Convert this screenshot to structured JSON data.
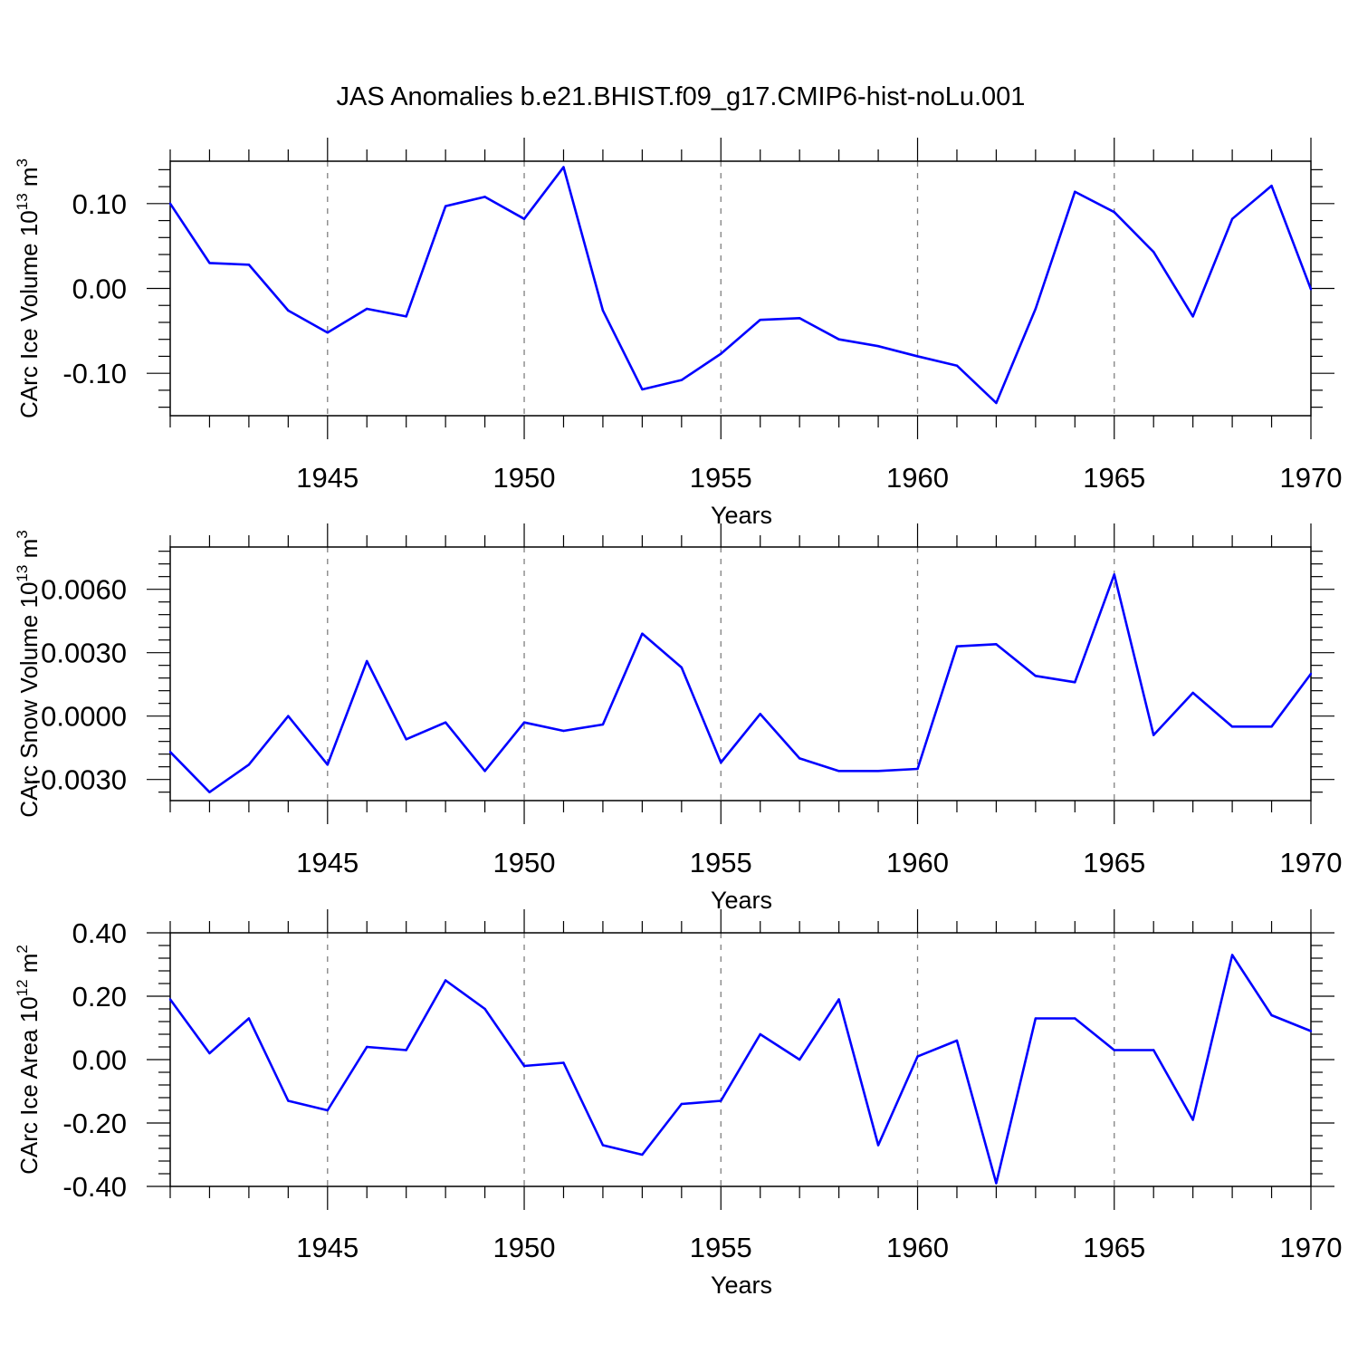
{
  "figure_title": "JAS Anomalies b.e21.BHIST.f09_g17.CMIP6-hist-noLu.001",
  "colors": {
    "line": "#0000ff",
    "axis": "#000000",
    "grid": "#808080",
    "background": "#ffffff"
  },
  "chart_data": [
    {
      "type": "line",
      "title": "JAS Anomalies b.e21.BHIST.f09_g17.CMIP6-hist-noLu.001",
      "xlabel": "Years",
      "ylabel_main": "CArc Ice Volume 10",
      "ylabel_sup1": "13",
      "ylabel_mid": " m",
      "ylabel_sup2": "3",
      "xlim": [
        1941,
        1970
      ],
      "ylim": [
        -0.15,
        0.15
      ],
      "xticks": [
        1945,
        1950,
        1955,
        1960,
        1965,
        1970
      ],
      "xtick_labels": [
        "1945",
        "1950",
        "1955",
        "1960",
        "1965",
        "1970"
      ],
      "yticks": [
        -0.1,
        0.0,
        0.1
      ],
      "ytick_labels": [
        "-0.10",
        "0.00",
        "0.10"
      ],
      "grid_vertical": true,
      "x": [
        1941,
        1942,
        1943,
        1944,
        1945,
        1946,
        1947,
        1948,
        1949,
        1950,
        1951,
        1952,
        1953,
        1954,
        1955,
        1956,
        1957,
        1958,
        1959,
        1960,
        1961,
        1962,
        1963,
        1964,
        1965,
        1966,
        1967,
        1968,
        1969,
        1970
      ],
      "values": [
        0.1,
        0.03,
        0.028,
        -0.026,
        -0.052,
        -0.024,
        -0.033,
        0.097,
        0.108,
        0.082,
        0.143,
        -0.026,
        -0.119,
        -0.108,
        -0.077,
        -0.037,
        -0.035,
        -0.06,
        -0.068,
        -0.08,
        -0.091,
        -0.135,
        -0.024,
        0.114,
        0.09,
        0.043,
        -0.033,
        0.082,
        0.121,
        -0.001
      ]
    },
    {
      "type": "line",
      "xlabel": "Years",
      "ylabel_main": "CArc Snow Volume 10",
      "ylabel_sup1": "13",
      "ylabel_mid": " m",
      "ylabel_sup2": "3",
      "xlim": [
        1941,
        1970
      ],
      "ylim": [
        -0.004,
        0.008
      ],
      "xticks": [
        1945,
        1950,
        1955,
        1960,
        1965,
        1970
      ],
      "xtick_labels": [
        "1945",
        "1950",
        "1955",
        "1960",
        "1965",
        "1970"
      ],
      "yticks": [
        -0.003,
        0.0,
        0.003,
        0.006
      ],
      "ytick_labels": [
        "-0.0030",
        "0.0000",
        "0.0030",
        "0.0060"
      ],
      "grid_vertical": true,
      "x": [
        1941,
        1942,
        1943,
        1944,
        1945,
        1946,
        1947,
        1948,
        1949,
        1950,
        1951,
        1952,
        1953,
        1954,
        1955,
        1956,
        1957,
        1958,
        1959,
        1960,
        1961,
        1962,
        1963,
        1964,
        1965,
        1966,
        1967,
        1968,
        1969,
        1970
      ],
      "values": [
        -0.0017,
        -0.0036,
        -0.0023,
        0.0,
        -0.0023,
        0.0026,
        -0.0011,
        -0.0003,
        -0.0026,
        -0.0003,
        -0.0007,
        -0.0004,
        0.0039,
        0.0023,
        -0.0022,
        0.0001,
        -0.002,
        -0.0026,
        -0.0026,
        -0.0025,
        0.0033,
        0.0034,
        0.0019,
        0.0016,
        0.0067,
        -0.0009,
        0.0011,
        -0.0005,
        -0.0005,
        0.002
      ]
    },
    {
      "type": "line",
      "xlabel": "Years",
      "ylabel_main": "CArc Ice Area 10",
      "ylabel_sup1": "12",
      "ylabel_mid": " m",
      "ylabel_sup2": "2",
      "xlim": [
        1941,
        1970
      ],
      "ylim": [
        -0.4,
        0.4
      ],
      "xticks": [
        1945,
        1950,
        1955,
        1960,
        1965,
        1970
      ],
      "xtick_labels": [
        "1945",
        "1950",
        "1955",
        "1960",
        "1965",
        "1970"
      ],
      "yticks": [
        -0.4,
        -0.2,
        0.0,
        0.2,
        0.4
      ],
      "ytick_labels": [
        "-0.40",
        "-0.20",
        "0.00",
        "0.20",
        "0.40"
      ],
      "grid_vertical": true,
      "x": [
        1941,
        1942,
        1943,
        1944,
        1945,
        1946,
        1947,
        1948,
        1949,
        1950,
        1951,
        1952,
        1953,
        1954,
        1955,
        1956,
        1957,
        1958,
        1959,
        1960,
        1961,
        1962,
        1963,
        1964,
        1965,
        1966,
        1967,
        1968,
        1969,
        1970
      ],
      "values": [
        0.19,
        0.02,
        0.13,
        -0.13,
        -0.16,
        0.04,
        0.03,
        0.25,
        0.16,
        -0.02,
        -0.01,
        -0.27,
        -0.3,
        -0.14,
        -0.13,
        0.08,
        0.0,
        0.19,
        -0.27,
        0.01,
        0.06,
        -0.39,
        0.13,
        0.13,
        0.03,
        0.03,
        -0.19,
        0.33,
        0.14,
        0.09
      ]
    }
  ]
}
